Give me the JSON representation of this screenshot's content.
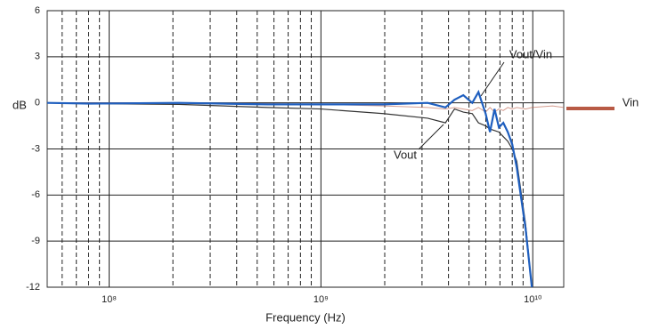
{
  "chart_data": {
    "type": "line",
    "xlabel": "Frequency (Hz)",
    "ylabel": "dB",
    "xscale": "log",
    "xlim": [
      51000000,
      14000000000
    ],
    "xticks": [
      {
        "value": 100000000,
        "label": "10⁸"
      },
      {
        "value": 1000000000,
        "label": "10⁹"
      },
      {
        "value": 10000000000,
        "label": "10¹⁰"
      }
    ],
    "x_minor_ticks": [
      60000000,
      70000000,
      80000000,
      90000000,
      200000000,
      300000000,
      400000000,
      500000000,
      600000000,
      700000000,
      800000000,
      900000000,
      2000000000,
      3000000000,
      4000000000,
      5000000000,
      6000000000,
      7000000000,
      8000000000,
      9000000000
    ],
    "ylim": [
      -12,
      6
    ],
    "yticks": [
      6,
      3,
      0,
      -3,
      -6,
      -9,
      -12
    ],
    "grid": true,
    "x": [
      51000000,
      81000000,
      213000000,
      560000000,
      1000000000,
      1970000000,
      3190000000,
      3870000000,
      4270000000,
      4700000000,
      5180000000,
      5540000000,
      5990000000,
      6280000000,
      6600000000,
      6920000000,
      7260000000,
      7620000000,
      8000000000,
      8400000000,
      9250000000,
      9900000000,
      12400000000,
      14000000000
    ],
    "series": [
      {
        "name": "Vin",
        "color": "#b85a45",
        "values": [
          0,
          0,
          0,
          -0.05,
          -0.1,
          -0.2,
          -0.3,
          -0.4,
          -0.3,
          -0.4,
          -0.5,
          -0.3,
          -0.6,
          -0.3,
          -0.6,
          -0.4,
          -0.5,
          -0.3,
          -0.4,
          -0.3,
          -0.4,
          -0.3,
          -0.2,
          -0.3
        ]
      },
      {
        "name": "Vout",
        "color": "#333333",
        "values": [
          0,
          -0.05,
          -0.1,
          -0.3,
          -0.4,
          -0.7,
          -1.0,
          -1.3,
          -0.4,
          -0.6,
          -0.7,
          -1.3,
          -1.5,
          -1.7,
          -1.8,
          -1.9,
          -2.2,
          -2.5,
          -3.0,
          -3.8,
          -7.9,
          -12,
          null,
          null
        ]
      },
      {
        "name": "Vout/Vin",
        "color": "#1f5fbf",
        "values": [
          0,
          -0.05,
          0,
          -0.1,
          -0.1,
          -0.1,
          0,
          -0.3,
          0.2,
          0.5,
          0,
          0.7,
          -0.7,
          -1.9,
          -0.4,
          -1.6,
          -1.3,
          -1.9,
          -2.7,
          -4.2,
          -8.2,
          -12,
          null,
          null
        ]
      }
    ]
  }
}
